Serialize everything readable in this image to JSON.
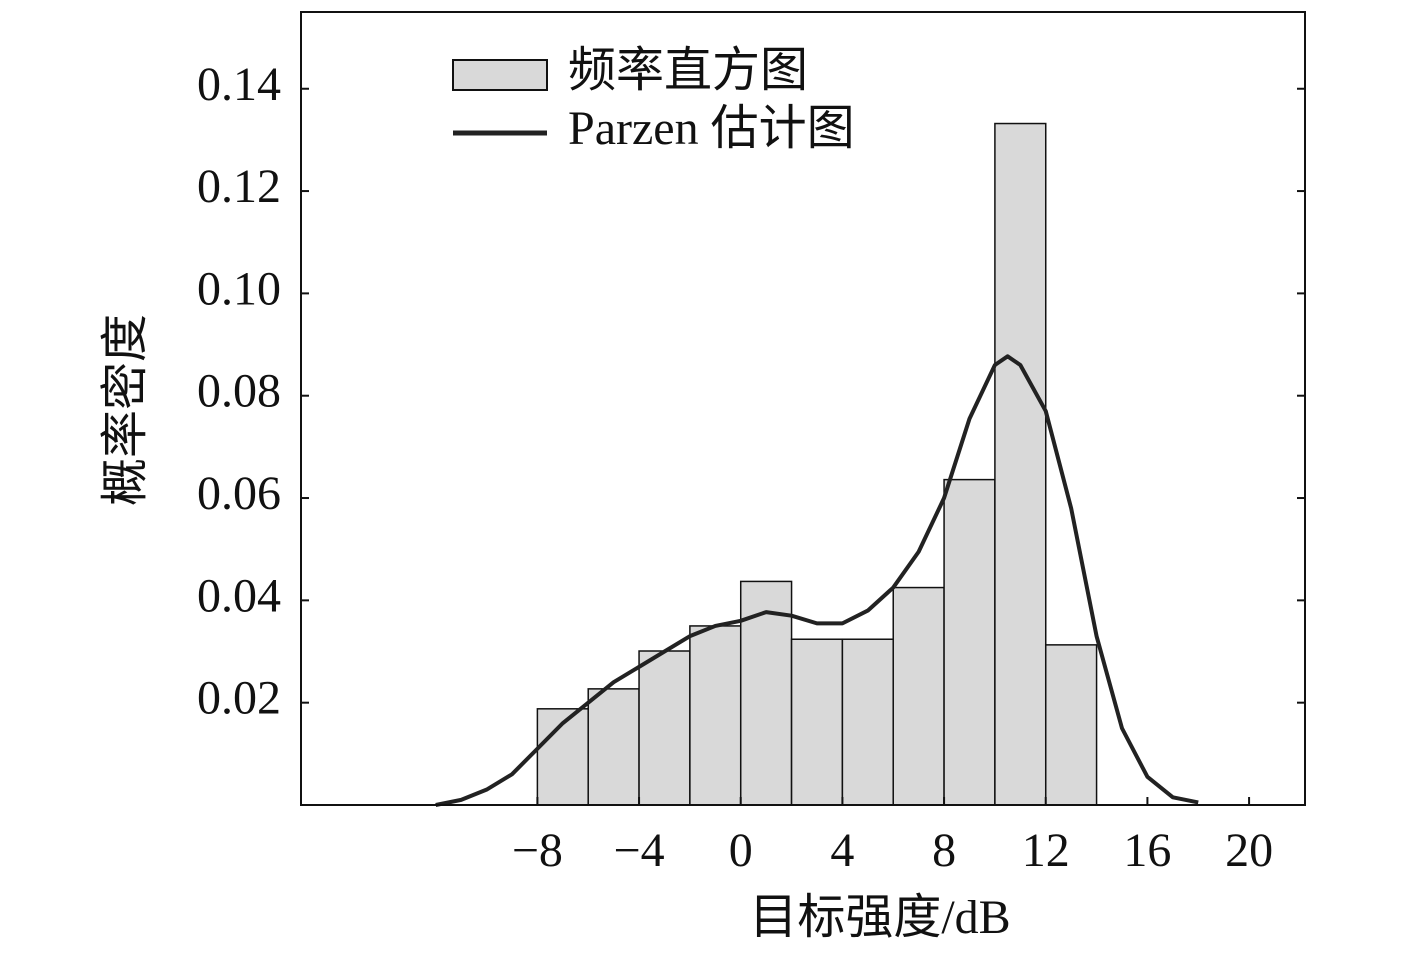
{
  "chart_data": {
    "type": "histogram",
    "x_label": "目标强度/dB",
    "y_label": "概率密度",
    "xlim": [
      -17.3,
      22.2
    ],
    "ylim": [
      0,
      0.155
    ],
    "xticks": [
      {
        "value": -8,
        "label": "−8"
      },
      {
        "value": -4,
        "label": "−4"
      },
      0,
      4,
      8,
      12,
      16,
      20
    ],
    "yticks": [
      0.02,
      0.04,
      0.06,
      0.08,
      {
        "value": 0.1,
        "label": "0.10"
      },
      0.12,
      0.14
    ],
    "legend": "upper left",
    "series": [
      {
        "name": "频率直方图",
        "type": "histogram",
        "color": "#d9d9d9",
        "bins": [
          -8,
          -6,
          -4,
          -2,
          0,
          2,
          4,
          6,
          8,
          10,
          12,
          14
        ],
        "values": [
          0.0188,
          0.0227,
          0.0301,
          0.035,
          0.0437,
          0.0324,
          0.0324,
          0.0425,
          0.0636,
          0.1332,
          0.0313
        ]
      },
      {
        "name": "Parzen 估计图",
        "type": "line",
        "color": "#222222",
        "x": [
          -12,
          -11,
          -10,
          -9,
          -8,
          -7,
          -6,
          -5,
          -4,
          -3,
          -2,
          -1,
          0,
          1,
          2,
          3,
          4,
          5,
          6,
          7,
          8,
          9,
          10,
          10.5,
          11,
          12,
          13,
          14,
          15,
          16,
          17,
          18
        ],
        "values": [
          0,
          0.001,
          0.003,
          0.006,
          0.011,
          0.016,
          0.02,
          0.024,
          0.027,
          0.03,
          0.033,
          0.035,
          0.036,
          0.0377,
          0.037,
          0.0355,
          0.0355,
          0.038,
          0.0425,
          0.0495,
          0.06,
          0.0755,
          0.086,
          0.0877,
          0.086,
          0.077,
          0.058,
          0.033,
          0.015,
          0.0055,
          0.0015,
          0.0005
        ]
      }
    ]
  }
}
